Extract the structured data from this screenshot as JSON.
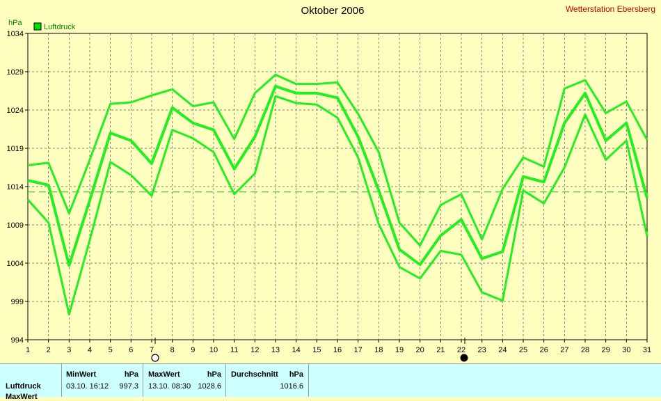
{
  "chart_data": {
    "type": "line",
    "title": "Oktober 2006",
    "station": "Wetterstation Ebersberg",
    "ylabel": "hPa",
    "ylim": [
      994,
      1034
    ],
    "yticks": [
      994,
      999,
      1004,
      1009,
      1014,
      1019,
      1024,
      1029,
      1034
    ],
    "x": [
      1,
      2,
      3,
      4,
      5,
      6,
      7,
      8,
      9,
      10,
      11,
      12,
      13,
      14,
      15,
      16,
      17,
      18,
      19,
      20,
      21,
      22,
      23,
      24,
      25,
      26,
      27,
      28,
      29,
      30,
      31
    ],
    "average_line": 1013.3,
    "series": [
      {
        "name": "Luftdruck",
        "role": "max",
        "values": [
          1016.8,
          1017.1,
          1010.5,
          1017.5,
          1024.8,
          1025.0,
          1025.9,
          1026.7,
          1024.5,
          1025.0,
          1020.2,
          1026.2,
          1028.6,
          1027.4,
          1027.4,
          1027.6,
          1023.5,
          1018.5,
          1009.3,
          1006.3,
          1011.6,
          1013.0,
          1007.1,
          1013.7,
          1017.8,
          1016.6,
          1026.8,
          1027.9,
          1023.6,
          1025.1,
          1020.1
        ]
      },
      {
        "name": "Luftdruck",
        "role": "mean",
        "values": [
          1014.8,
          1014.2,
          1003.7,
          1012.2,
          1021.0,
          1020.0,
          1017.0,
          1024.3,
          1022.3,
          1021.4,
          1016.3,
          1020.5,
          1027.1,
          1026.2,
          1026.2,
          1025.6,
          1020.5,
          1013.5,
          1005.8,
          1003.8,
          1007.6,
          1009.7,
          1004.6,
          1005.5,
          1015.3,
          1014.6,
          1022.3,
          1026.2,
          1020.0,
          1022.3,
          1012.5
        ]
      },
      {
        "name": "Luftdruck",
        "role": "min",
        "values": [
          1012.3,
          1009.3,
          997.3,
          1007.0,
          1017.2,
          1015.5,
          1012.8,
          1021.4,
          1020.3,
          1018.5,
          1013.0,
          1015.7,
          1025.8,
          1024.9,
          1024.7,
          1023.0,
          1017.8,
          1009.1,
          1003.5,
          1002.0,
          1005.6,
          1005.1,
          1000.2,
          999.1,
          1013.5,
          1011.8,
          1016.5,
          1023.4,
          1017.5,
          1020.0,
          1007.5
        ]
      }
    ],
    "legend": {
      "label": "Luftdruck",
      "color": "#00dd00",
      "position": "top-left"
    },
    "moon": {
      "full_day": 7,
      "new_day": 22
    },
    "line_color": "#22ee22",
    "grid": true
  },
  "stats": {
    "row_label": "Luftdruck",
    "row_label2": "MaxWert",
    "min": {
      "header": "MinWert",
      "unit": "hPa",
      "datetime": "03.10.  16:12",
      "value": "997.3"
    },
    "max": {
      "header": "MaxWert",
      "unit": "hPa",
      "datetime": "13.10.  08:30",
      "value": "1028.6"
    },
    "avg": {
      "header": "Durchschnitt",
      "unit": "hPa",
      "value": "1016.6"
    }
  }
}
